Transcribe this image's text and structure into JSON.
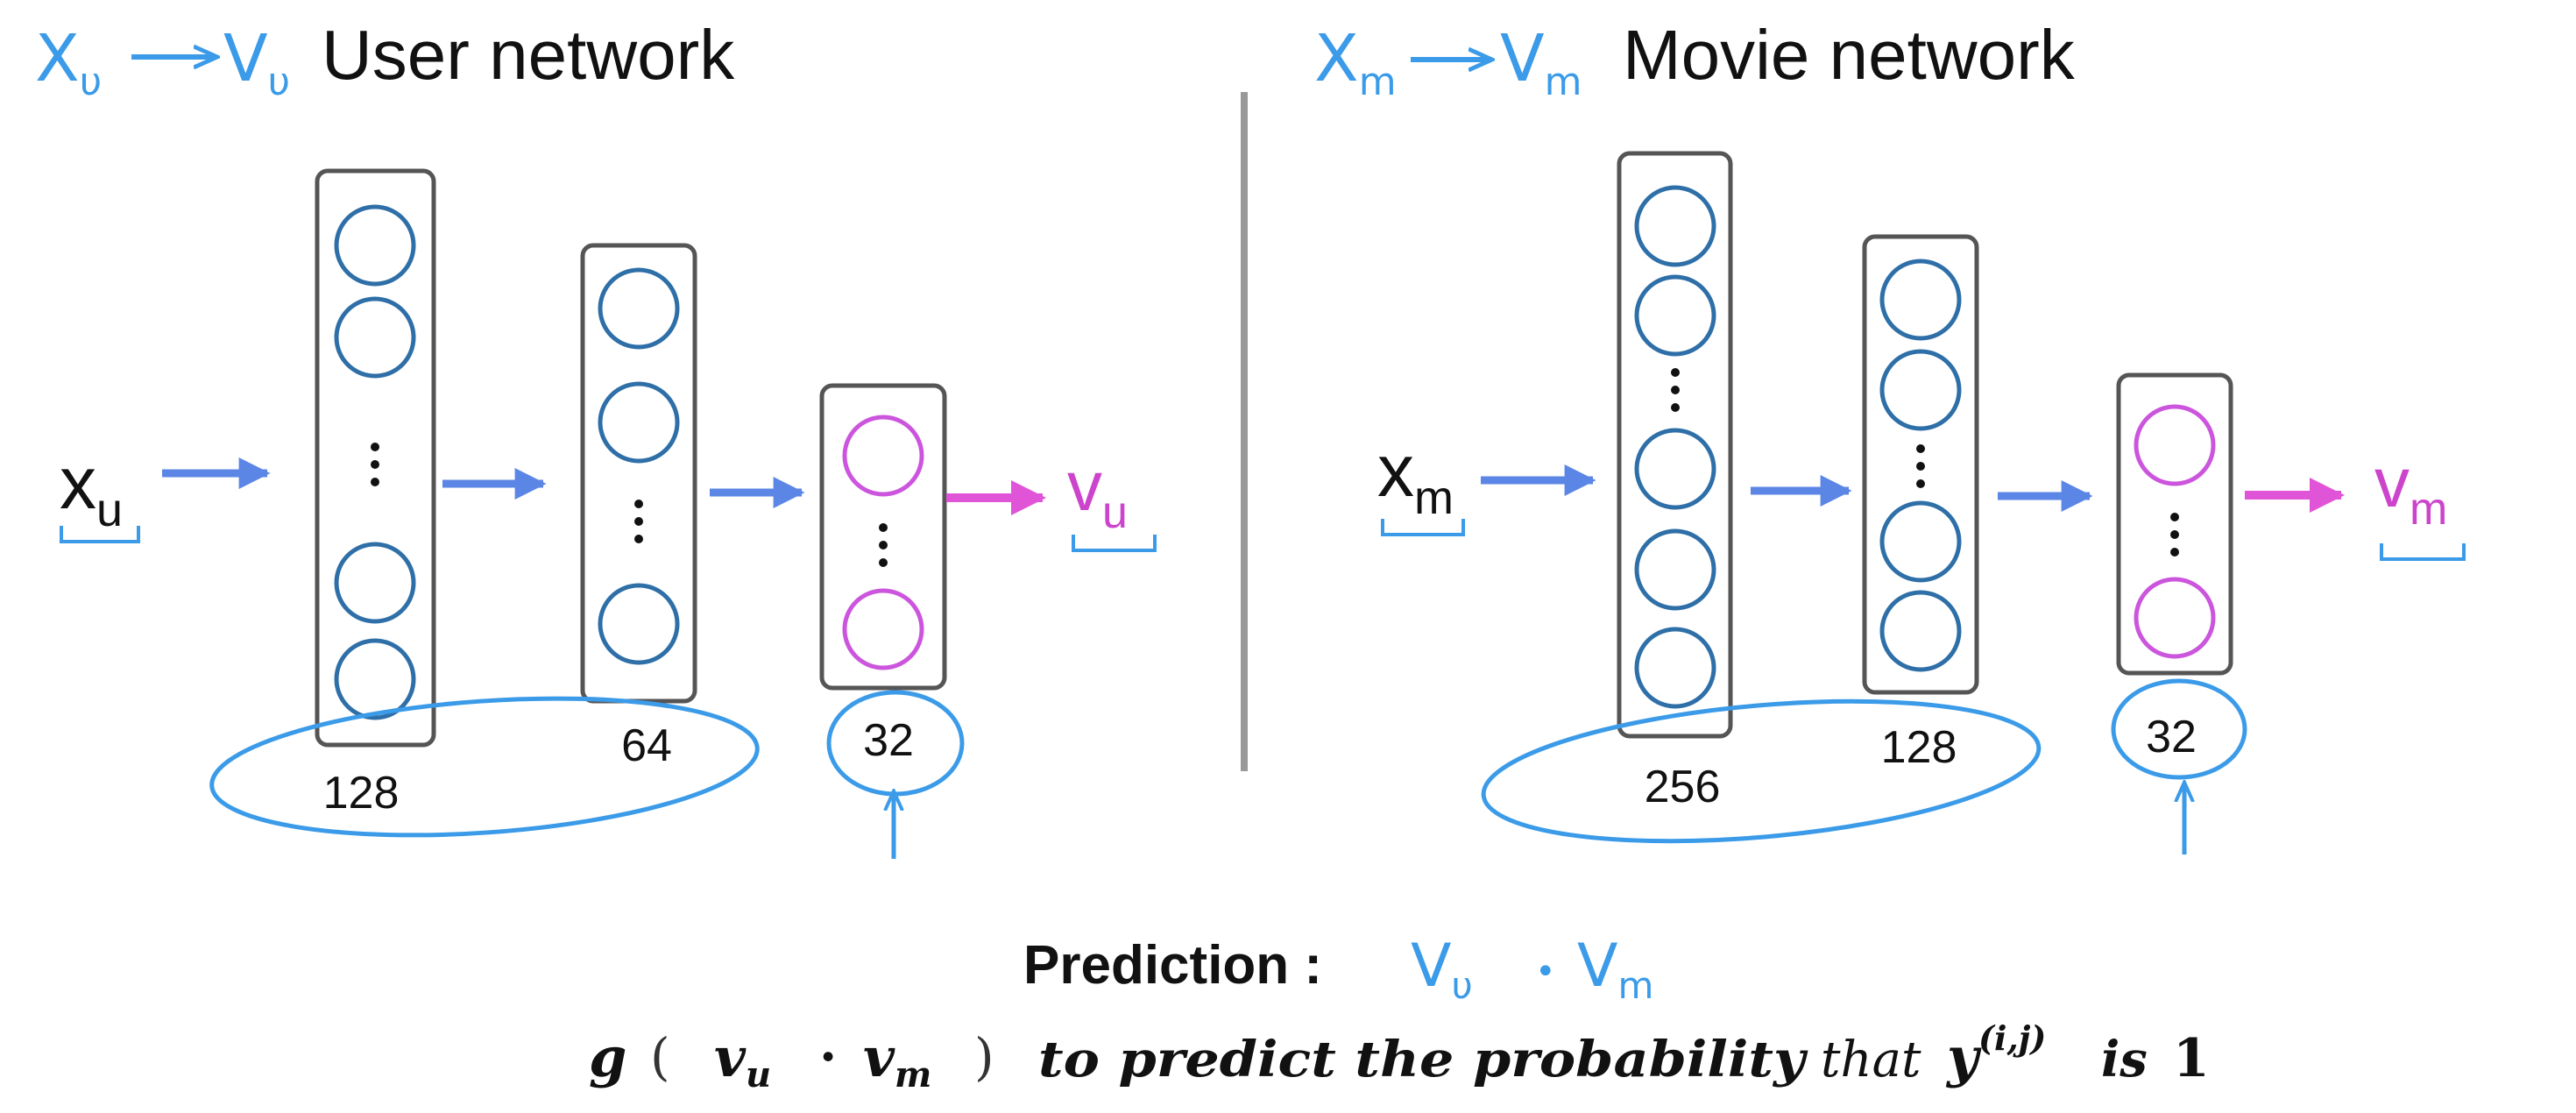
{
  "annotation_color": "#3b9be8",
  "neuron_color": "#2f6fa8",
  "output_neuron_color": "#cc55dd",
  "arrow_color": "#5b86e5",
  "output_arrow_color": "#e055d8",
  "user": {
    "note_left": "X",
    "note_left_sub": "υ",
    "note_right": "V",
    "note_right_sub": "υ",
    "title": "User network",
    "input": "x",
    "input_sub": "u",
    "output": "v",
    "output_sub": "u",
    "layers": [
      "128",
      "64",
      "32"
    ]
  },
  "movie": {
    "note_left": "X",
    "note_left_sub": "m",
    "note_right": "V",
    "note_right_sub": "m",
    "title": "Movie network",
    "input": "x",
    "input_sub": "m",
    "output": "v",
    "output_sub": "m",
    "layers": [
      "256",
      "128",
      "32"
    ]
  },
  "prediction": {
    "label": "Prediction :",
    "note_vu": "V",
    "note_vu_sub": "υ",
    "note_dot": "•",
    "note_vm": "V",
    "note_vm_sub": "m"
  },
  "formula": {
    "g": "g",
    "open": "(",
    "vu": "v",
    "vu_sub": "u",
    "dot": "·",
    "vm": "v",
    "vm_sub": "m",
    "close": ")",
    "text_a": "to predict  the probability",
    "text_b": "that",
    "y": "y",
    "y_sup": "(i,j)",
    "text_c": "is",
    "one": "1"
  }
}
